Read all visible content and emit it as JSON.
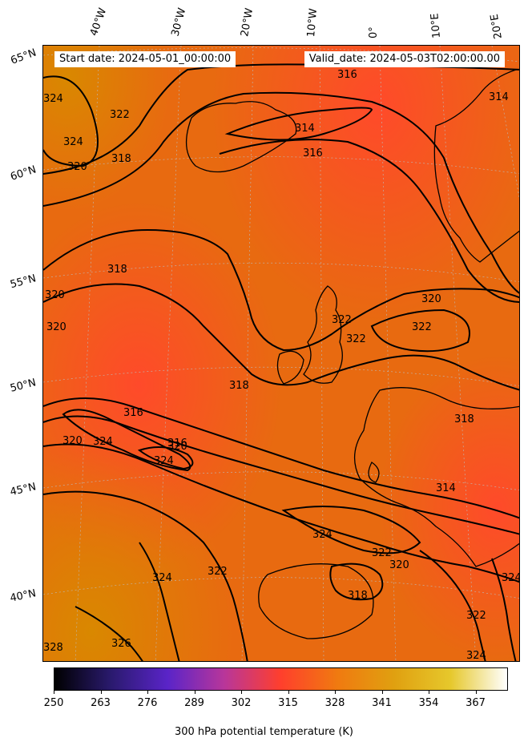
{
  "header": {
    "start_date": "Start date: 2024-05-01_00:00:00",
    "valid_date": "Valid_date: 2024-05-03T02:00:00.00"
  },
  "longitude_labels": [
    "40°W",
    "30°W",
    "20°W",
    "10°W",
    "0°",
    "10°E",
    "20°E"
  ],
  "latitude_labels": [
    "65°N",
    "60°N",
    "55°N",
    "50°N",
    "45°N",
    "40°N"
  ],
  "contour_labels": [
    "316",
    "314",
    "316",
    "322",
    "324",
    "320",
    "318",
    "324",
    "318",
    "320",
    "320",
    "316",
    "320",
    "322",
    "322",
    "320",
    "322",
    "318",
    "318",
    "316",
    "324",
    "320",
    "324",
    "314",
    "324",
    "322",
    "320",
    "322",
    "324",
    "326",
    "318",
    "324",
    "322",
    "324",
    "328",
    "314"
  ],
  "colorbar": {
    "ticks": [
      "250",
      "263",
      "276",
      "289",
      "302",
      "315",
      "328",
      "341",
      "354",
      "367"
    ],
    "label": "300 hPa potential temperature (K)",
    "colors": [
      "#000000",
      "#2a1a6e",
      "#5a24c8",
      "#b8369a",
      "#ff3f2c",
      "#f07a10",
      "#e0a010",
      "#e6c82c",
      "#ffffff"
    ]
  },
  "colors": {
    "field_warm": "#e0780c",
    "field_hot": "#ff4a2a",
    "contour": "#000000"
  }
}
